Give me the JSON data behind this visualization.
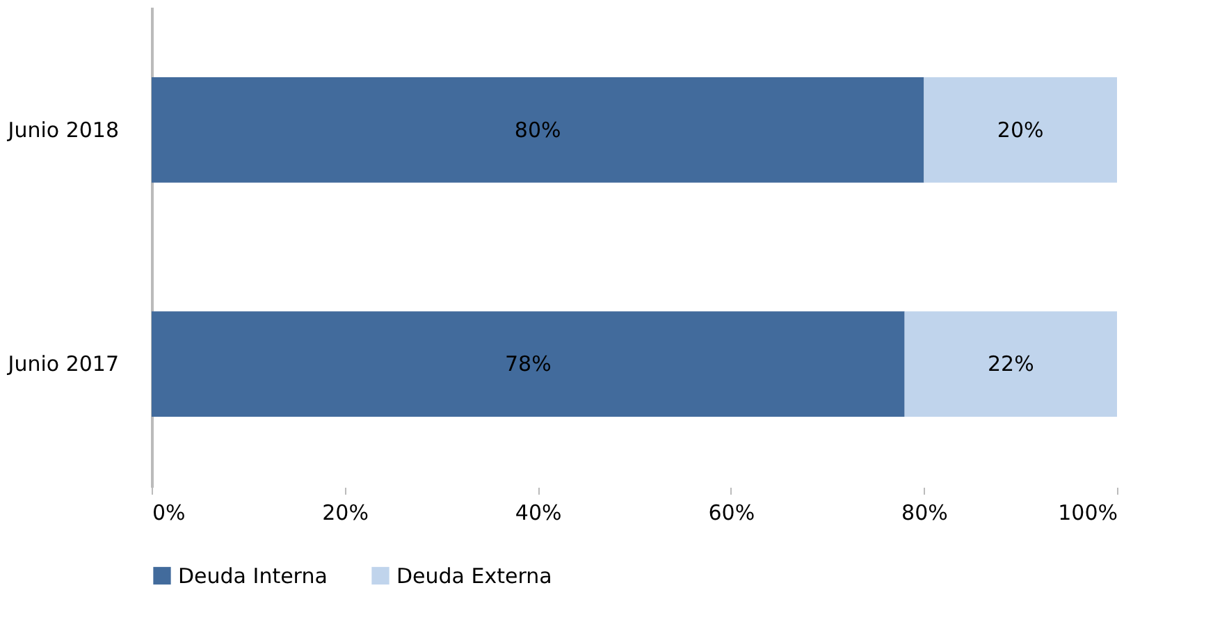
{
  "chart_data": {
    "type": "bar",
    "orientation": "horizontal",
    "stacked": true,
    "categories": [
      "Junio 2018",
      "Junio 2017"
    ],
    "series": [
      {
        "name": "Deuda Interna",
        "color": "#426b9c",
        "values": [
          80,
          78
        ],
        "value_labels": [
          "80%",
          "78%"
        ]
      },
      {
        "name": "Deuda Externa",
        "color": "#c0d4ec",
        "values": [
          20,
          22
        ],
        "value_labels": [
          "20%",
          "22%"
        ]
      }
    ],
    "xlim": [
      0,
      100
    ],
    "xticks": [
      {
        "value": 0,
        "label": "0%"
      },
      {
        "value": 20,
        "label": "20%"
      },
      {
        "value": 40,
        "label": "40%"
      },
      {
        "value": 60,
        "label": "60%"
      },
      {
        "value": 80,
        "label": "80%"
      },
      {
        "value": 100,
        "label": "100%"
      }
    ],
    "grid": false,
    "legend": "bottom"
  }
}
